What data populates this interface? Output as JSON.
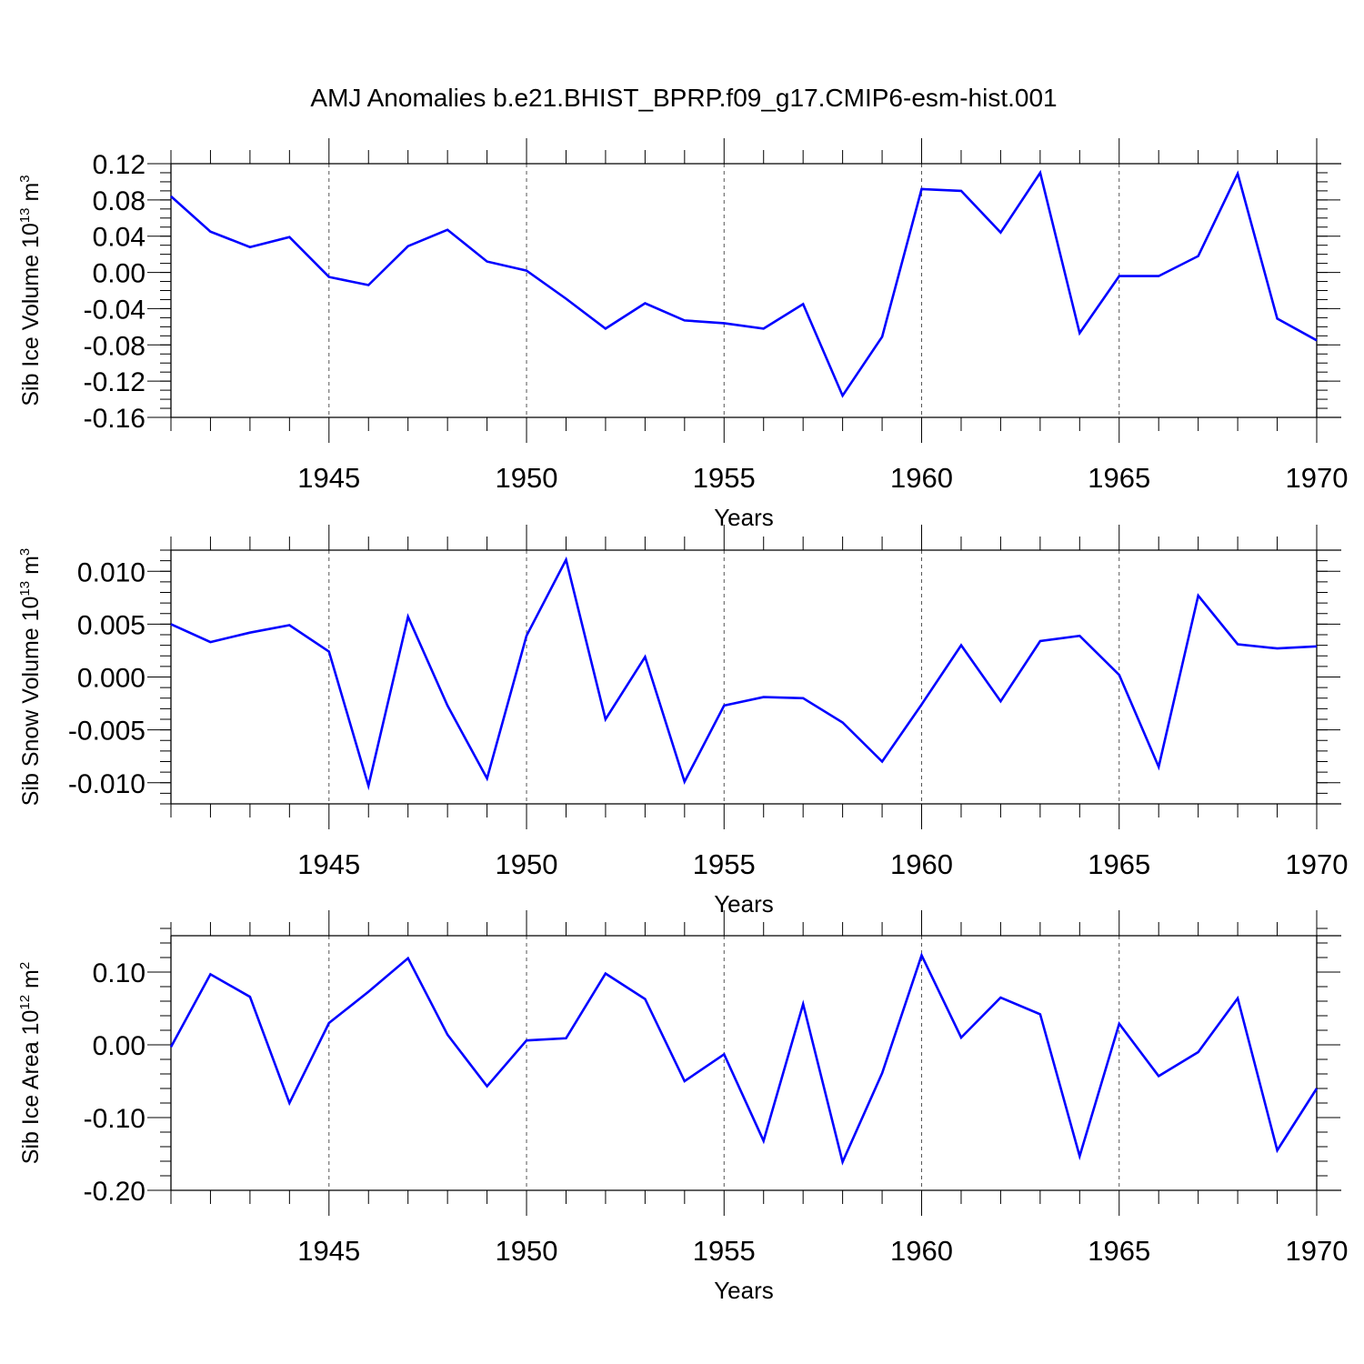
{
  "figure_title": "AMJ Anomalies b.e21.BHIST_BPRP.f09_g17.CMIP6-esm-hist.001",
  "line_color": "#0000ff",
  "chart_data": [
    {
      "type": "line",
      "title": "AMJ Anomalies b.e21.BHIST_BPRP.f09_g17.CMIP6-esm-hist.001",
      "ylabel_main": "Sib Ice Volume 10",
      "ylabel_exp": "13",
      "ylabel_unit": " m",
      "ylabel_unit_exp": "3",
      "xlabel": "Years",
      "xlim": [
        1941,
        1970
      ],
      "ylim": [
        -0.16,
        0.12
      ],
      "yticks": [
        -0.16,
        -0.12,
        -0.08,
        -0.04,
        0.0,
        0.04,
        0.08,
        0.12
      ],
      "ytick_labels": [
        "-0.16",
        "-0.12",
        "-0.08",
        "-0.04",
        "0.00",
        "0.04",
        "0.08",
        "0.12"
      ],
      "xticks": [
        1945,
        1950,
        1955,
        1960,
        1965,
        1970
      ],
      "xtick_labels": [
        "1945",
        "1950",
        "1955",
        "1960",
        "1965",
        "1970"
      ],
      "grid": "vertical dashed at major x ticks",
      "series": [
        {
          "name": "Sib Ice Volume",
          "x": [
            1941,
            1942,
            1943,
            1944,
            1945,
            1946,
            1947,
            1948,
            1949,
            1950,
            1951,
            1952,
            1953,
            1954,
            1955,
            1956,
            1957,
            1958,
            1959,
            1960,
            1961,
            1962,
            1963,
            1964,
            1965,
            1966,
            1967,
            1968,
            1969,
            1970
          ],
          "values": [
            0.084,
            0.045,
            0.028,
            0.039,
            -0.005,
            -0.014,
            0.029,
            0.047,
            0.012,
            0.002,
            -0.029,
            -0.062,
            -0.034,
            -0.053,
            -0.056,
            -0.062,
            -0.035,
            -0.136,
            -0.071,
            0.092,
            0.09,
            0.044,
            0.11,
            -0.067,
            -0.004,
            -0.004,
            0.018,
            0.109,
            -0.051,
            -0.075
          ]
        }
      ]
    },
    {
      "type": "line",
      "ylabel_main": "Sib Snow Volume 10",
      "ylabel_exp": "13",
      "ylabel_unit": " m",
      "ylabel_unit_exp": "3",
      "xlabel": "Years",
      "xlim": [
        1941,
        1970
      ],
      "ylim": [
        -0.012,
        0.012
      ],
      "yticks": [
        -0.01,
        -0.005,
        0.0,
        0.005,
        0.01
      ],
      "ytick_labels": [
        "-0.010",
        "-0.005",
        "0.000",
        "0.005",
        "0.010"
      ],
      "xticks": [
        1945,
        1950,
        1955,
        1960,
        1965,
        1970
      ],
      "xtick_labels": [
        "1945",
        "1950",
        "1955",
        "1960",
        "1965",
        "1970"
      ],
      "grid": "vertical dashed at major x ticks",
      "series": [
        {
          "name": "Sib Snow Volume",
          "x": [
            1941,
            1942,
            1943,
            1944,
            1945,
            1946,
            1947,
            1948,
            1949,
            1950,
            1951,
            1952,
            1953,
            1954,
            1955,
            1956,
            1957,
            1958,
            1959,
            1960,
            1961,
            1962,
            1963,
            1964,
            1965,
            1966,
            1967,
            1968,
            1969,
            1970
          ],
          "values": [
            0.005,
            0.0033,
            0.0042,
            0.0049,
            0.0024,
            -0.0103,
            0.0057,
            -0.0027,
            -0.0096,
            0.0039,
            0.0111,
            -0.004,
            0.0019,
            -0.0099,
            -0.0027,
            -0.0019,
            -0.002,
            -0.0043,
            -0.008,
            -0.0026,
            0.003,
            -0.0023,
            0.0034,
            0.0039,
            0.0002,
            -0.0085,
            0.0077,
            0.0031,
            0.0027,
            0.0029
          ]
        }
      ]
    },
    {
      "type": "line",
      "ylabel_main": "Sib Ice Area 10",
      "ylabel_exp": "12",
      "ylabel_unit": " m",
      "ylabel_unit_exp": "2",
      "xlabel": "Years",
      "xlim": [
        1941,
        1970
      ],
      "ylim": [
        -0.2,
        0.15
      ],
      "yticks": [
        -0.2,
        -0.1,
        0.0,
        0.1
      ],
      "ytick_labels": [
        "-0.20",
        "-0.10",
        "0.00",
        "0.10"
      ],
      "xticks": [
        1945,
        1950,
        1955,
        1960,
        1965,
        1970
      ],
      "xtick_labels": [
        "1945",
        "1950",
        "1955",
        "1960",
        "1965",
        "1970"
      ],
      "grid": "vertical dashed at major x ticks",
      "series": [
        {
          "name": "Sib Ice Area",
          "x": [
            1941,
            1942,
            1943,
            1944,
            1945,
            1946,
            1947,
            1948,
            1949,
            1950,
            1951,
            1952,
            1953,
            1954,
            1955,
            1956,
            1957,
            1958,
            1959,
            1960,
            1961,
            1962,
            1963,
            1964,
            1965,
            1966,
            1967,
            1968,
            1969,
            1970
          ],
          "values": [
            -0.003,
            0.097,
            0.066,
            -0.08,
            0.03,
            0.073,
            0.119,
            0.014,
            -0.057,
            0.006,
            0.009,
            0.098,
            0.063,
            -0.05,
            -0.013,
            -0.132,
            0.056,
            -0.161,
            -0.039,
            0.123,
            0.01,
            0.065,
            0.042,
            -0.153,
            0.029,
            -0.043,
            -0.01,
            0.064,
            -0.145,
            -0.06
          ]
        }
      ]
    }
  ]
}
